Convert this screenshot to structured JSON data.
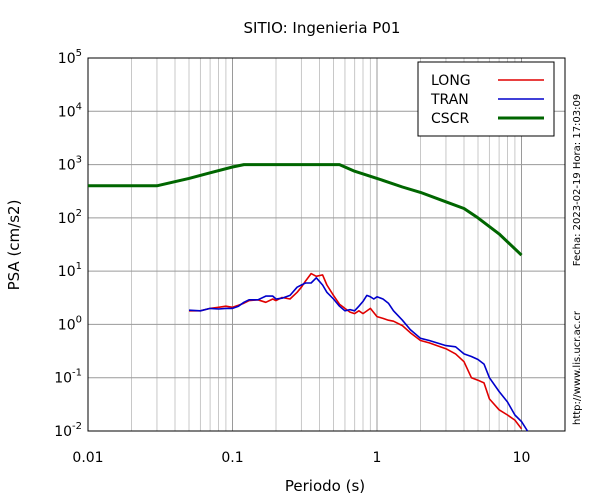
{
  "chart_data": {
    "type": "line",
    "title": "SITIO: Ingenieria P01",
    "xlabel": "Periodo (s)",
    "ylabel": "PSA (cm/s2)",
    "xscale": "log",
    "yscale": "log",
    "xlim": [
      0.01,
      20
    ],
    "ylim": [
      0.01,
      100000
    ],
    "x_ticks": [
      "0.01",
      "0.1",
      "1",
      "10"
    ],
    "x_tick_values": [
      0.01,
      0.1,
      1,
      10
    ],
    "y_ticks": [
      {
        "base": "10",
        "exp": "-2",
        "value": 0.01
      },
      {
        "base": "10",
        "exp": "-1",
        "value": 0.1
      },
      {
        "base": "10",
        "exp": "0",
        "value": 1
      },
      {
        "base": "10",
        "exp": "1",
        "value": 10
      },
      {
        "base": "10",
        "exp": "2",
        "value": 100
      },
      {
        "base": "10",
        "exp": "3",
        "value": 1000
      },
      {
        "base": "10",
        "exp": "4",
        "value": 10000
      },
      {
        "base": "10",
        "exp": "5",
        "value": 100000
      }
    ],
    "grid": true,
    "legend_position": "top-right",
    "series": [
      {
        "name": "LONG",
        "color": "#e00000",
        "x": [
          0.05,
          0.06,
          0.07,
          0.08,
          0.09,
          0.1,
          0.11,
          0.12,
          0.13,
          0.15,
          0.17,
          0.19,
          0.2,
          0.22,
          0.25,
          0.28,
          0.3,
          0.32,
          0.35,
          0.38,
          0.42,
          0.45,
          0.5,
          0.55,
          0.6,
          0.65,
          0.7,
          0.75,
          0.8,
          0.9,
          1.0,
          1.1,
          1.2,
          1.3,
          1.5,
          1.7,
          2.0,
          2.3,
          2.6,
          3.0,
          3.5,
          4.0,
          4.5,
          5.0,
          5.5,
          6.0,
          7.0,
          8.0,
          9.0,
          10.0
        ],
        "y": [
          1.8,
          1.8,
          2.0,
          2.1,
          2.2,
          2.1,
          2.3,
          2.5,
          2.8,
          2.9,
          2.6,
          3.0,
          2.8,
          3.2,
          3.0,
          4.0,
          5.0,
          6.5,
          9.0,
          8.0,
          8.5,
          5.5,
          3.5,
          2.4,
          2.0,
          1.7,
          1.6,
          1.8,
          1.6,
          2.0,
          1.4,
          1.3,
          1.2,
          1.15,
          0.95,
          0.7,
          0.5,
          0.45,
          0.4,
          0.35,
          0.28,
          0.2,
          0.1,
          0.09,
          0.08,
          0.04,
          0.025,
          0.02,
          0.016,
          0.011
        ]
      },
      {
        "name": "TRAN",
        "color": "#0000cc",
        "x": [
          0.05,
          0.06,
          0.07,
          0.08,
          0.09,
          0.1,
          0.11,
          0.12,
          0.13,
          0.15,
          0.17,
          0.19,
          0.2,
          0.22,
          0.25,
          0.28,
          0.3,
          0.32,
          0.35,
          0.38,
          0.42,
          0.45,
          0.5,
          0.55,
          0.6,
          0.65,
          0.7,
          0.75,
          0.8,
          0.85,
          0.9,
          0.95,
          1.0,
          1.1,
          1.2,
          1.3,
          1.5,
          1.7,
          2.0,
          2.3,
          2.6,
          3.0,
          3.5,
          4.0,
          4.5,
          5.0,
          5.5,
          6.0,
          7.0,
          8.0,
          9.0,
          10.0,
          11.0
        ],
        "y": [
          1.85,
          1.8,
          2.0,
          1.95,
          2.0,
          2.0,
          2.2,
          2.6,
          2.9,
          2.9,
          3.4,
          3.4,
          3.0,
          3.1,
          3.5,
          5.0,
          5.5,
          6.0,
          6.0,
          7.5,
          5.5,
          4.0,
          3.0,
          2.2,
          1.8,
          1.9,
          1.8,
          2.2,
          2.7,
          3.5,
          3.3,
          3.0,
          3.3,
          3.0,
          2.5,
          1.8,
          1.2,
          0.8,
          0.55,
          0.5,
          0.45,
          0.4,
          0.38,
          0.28,
          0.25,
          0.22,
          0.18,
          0.1,
          0.055,
          0.035,
          0.02,
          0.015,
          0.01
        ]
      },
      {
        "name": "CSCR",
        "color": "#006600",
        "x": [
          0.01,
          0.03,
          0.05,
          0.07,
          0.1,
          0.12,
          0.2,
          0.3,
          0.4,
          0.55,
          0.7,
          1.0,
          1.5,
          2.0,
          3.0,
          4.0,
          5.0,
          7.0,
          10.0
        ],
        "y": [
          400,
          400,
          550,
          700,
          900,
          1000,
          1000,
          1000,
          1000,
          1000,
          750,
          550,
          380,
          300,
          200,
          150,
          100,
          50,
          20
        ]
      }
    ]
  },
  "side_text": {
    "date": "Fecha: 2023-02-19  Hora: 17:03:09",
    "url": "http://www.lis.ucr.ac.cr"
  }
}
